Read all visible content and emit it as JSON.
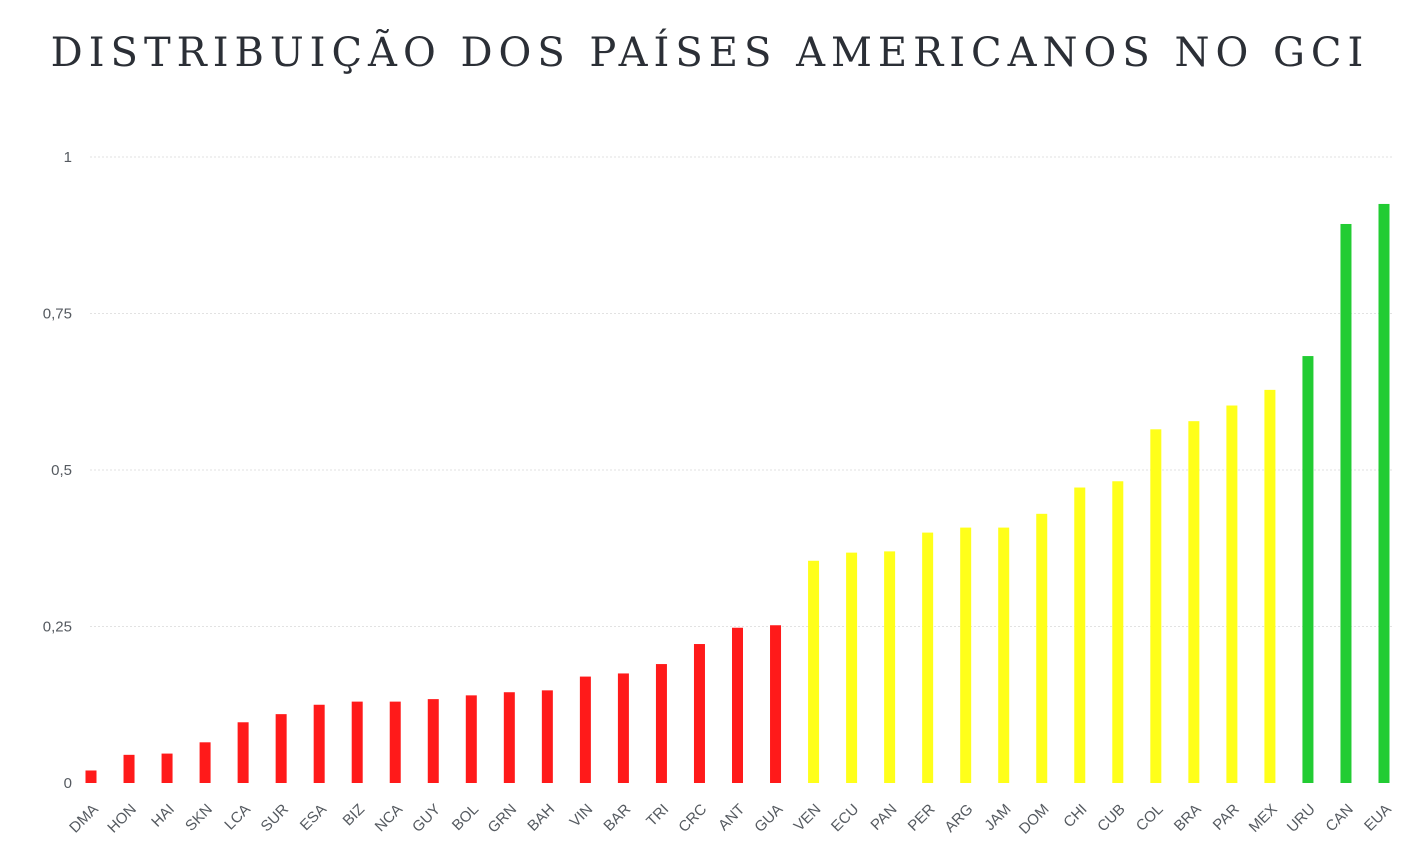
{
  "chart_data": {
    "type": "bar",
    "title": "DISTRIBUIÇÃO DOS PAÍSES AMERICANOS NO GCI",
    "xlabel": "",
    "ylabel": "",
    "ylim": [
      0,
      1
    ],
    "yticks": [
      {
        "value": 0,
        "label": "0"
      },
      {
        "value": 0.25,
        "label": "0,25"
      },
      {
        "value": 0.5,
        "label": "0,5"
      },
      {
        "value": 0.75,
        "label": "0,75"
      },
      {
        "value": 1,
        "label": "1"
      }
    ],
    "grid": true,
    "legend": "none",
    "categories": [
      "DMA",
      "HON",
      "HAI",
      "SKN",
      "LCA",
      "SUR",
      "ESA",
      "BIZ",
      "NCA",
      "GUY",
      "BOL",
      "GRN",
      "BAH",
      "VIN",
      "BAR",
      "TRI",
      "CRC",
      "ANT",
      "GUA",
      "VEN",
      "ECU",
      "PAN",
      "PER",
      "ARG",
      "JAM",
      "DOM",
      "CHI",
      "CUB",
      "COL",
      "BRA",
      "PAR",
      "MEX",
      "URU",
      "CAN",
      "EUA"
    ],
    "values": [
      0.02,
      0.045,
      0.047,
      0.065,
      0.097,
      0.11,
      0.125,
      0.13,
      0.13,
      0.134,
      0.14,
      0.145,
      0.148,
      0.17,
      0.175,
      0.19,
      0.222,
      0.248,
      0.252,
      0.355,
      0.368,
      0.37,
      0.4,
      0.408,
      0.408,
      0.43,
      0.472,
      0.482,
      0.565,
      0.578,
      0.603,
      0.628,
      0.682,
      0.893,
      0.925
    ],
    "colors": [
      "#ff1a1a",
      "#ff1a1a",
      "#ff1a1a",
      "#ff1a1a",
      "#ff1a1a",
      "#ff1a1a",
      "#ff1a1a",
      "#ff1a1a",
      "#ff1a1a",
      "#ff1a1a",
      "#ff1a1a",
      "#ff1a1a",
      "#ff1a1a",
      "#ff1a1a",
      "#ff1a1a",
      "#ff1a1a",
      "#ff1a1a",
      "#ff1a1a",
      "#ff1a1a",
      "#ffff1a",
      "#ffff1a",
      "#ffff1a",
      "#ffff1a",
      "#ffff1a",
      "#ffff1a",
      "#ffff1a",
      "#ffff1a",
      "#ffff1a",
      "#ffff1a",
      "#ffff1a",
      "#ffff1a",
      "#ffff1a",
      "#22cc33",
      "#22cc33",
      "#22cc33"
    ]
  }
}
